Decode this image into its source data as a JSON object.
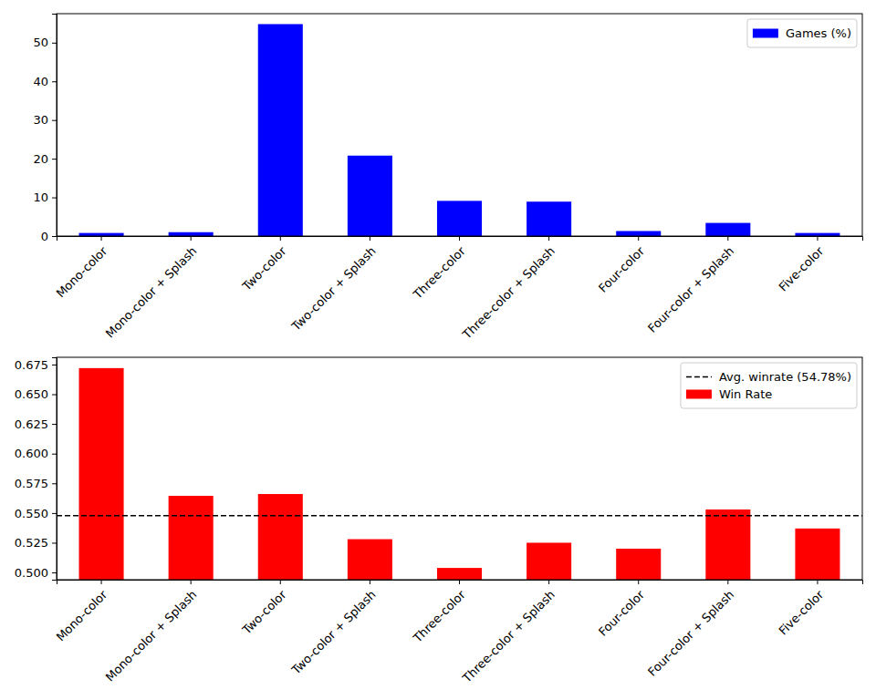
{
  "chart_data": [
    {
      "type": "bar",
      "categories": [
        "Mono-color",
        "Mono-color + Splash",
        "Two-color",
        "Two-color + Splash",
        "Three-color",
        "Three-color + Splash",
        "Four-color",
        "Four-color + Splash",
        "Five-color"
      ],
      "series": [
        {
          "name": "Games (%)",
          "color": "#0000ff",
          "values": [
            0.8,
            1.0,
            54.8,
            20.8,
            9.1,
            8.9,
            1.3,
            3.4,
            0.8
          ]
        }
      ],
      "ylim": [
        0,
        57.5
      ],
      "yticks": [
        0,
        10,
        20,
        30,
        40,
        50
      ],
      "legend": "upper right"
    },
    {
      "type": "bar",
      "categories": [
        "Mono-color",
        "Mono-color + Splash",
        "Two-color",
        "Two-color + Splash",
        "Three-color",
        "Three-color + Splash",
        "Four-color",
        "Four-color + Splash",
        "Five-color"
      ],
      "series": [
        {
          "name": "Win Rate",
          "color": "#ff0000",
          "values": [
            0.672,
            0.5645,
            0.566,
            0.528,
            0.5038,
            0.525,
            0.52,
            0.553,
            0.537
          ]
        }
      ],
      "hline": {
        "value": 0.5478,
        "name": "Avg. winrate (54.78%)",
        "color": "#000000",
        "line_style": "dashed"
      },
      "ylim": [
        0.4939,
        0.6811
      ],
      "yticks": [
        {
          "value": 0.5,
          "label": "0.500"
        },
        {
          "value": 0.525,
          "label": "0.525"
        },
        {
          "value": 0.55,
          "label": "0.550"
        },
        {
          "value": 0.575,
          "label": "0.575"
        },
        {
          "value": 0.6,
          "label": "0.600"
        },
        {
          "value": 0.625,
          "label": "0.625"
        },
        {
          "value": 0.65,
          "label": "0.650"
        },
        {
          "value": 0.675,
          "label": "0.675"
        }
      ],
      "legend": "upper right"
    }
  ]
}
